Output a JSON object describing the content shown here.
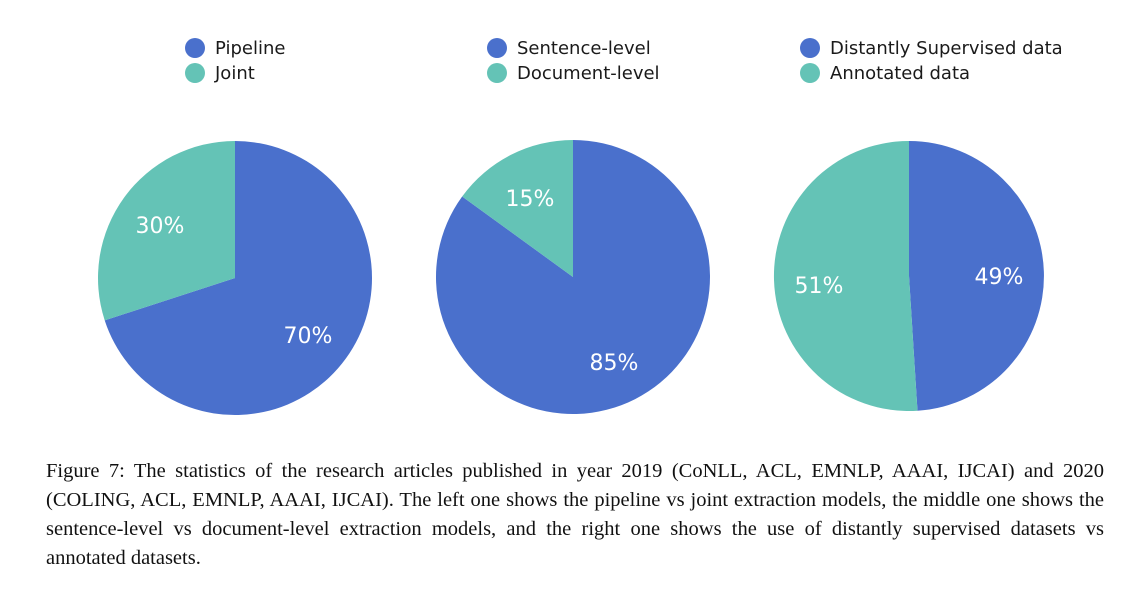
{
  "chart_data": [
    {
      "type": "pie",
      "title": "",
      "labels": [
        "Pipeline",
        "Joint"
      ],
      "values": [
        70,
        30
      ],
      "value_labels": [
        "70%",
        "30%"
      ],
      "colors": [
        "#4a70cc",
        "#64c3b6"
      ],
      "legend_placement": "top"
    },
    {
      "type": "pie",
      "title": "",
      "labels": [
        "Sentence-level",
        "Document-level"
      ],
      "values": [
        85,
        15
      ],
      "value_labels": [
        "85%",
        "15%"
      ],
      "colors": [
        "#4a70cc",
        "#64c3b6"
      ],
      "legend_placement": "top"
    },
    {
      "type": "pie",
      "title": "",
      "labels": [
        "Distantly Supervised data",
        "Annotated data"
      ],
      "values": [
        49,
        51
      ],
      "value_labels": [
        "49%",
        "51%"
      ],
      "colors": [
        "#4a70cc",
        "#64c3b6"
      ],
      "legend_placement": "top"
    }
  ],
  "caption": "Figure 7: The statistics of the research articles published in year 2019 (CoNLL, ACL, EMNLP, AAAI, IJCAI) and 2020 (COLING, ACL, EMNLP, AAAI, IJCAI). The left one shows the pipeline vs joint extraction models, the middle one shows the sentence-level vs document-level extraction models, and the right one shows the use of distantly supervised datasets vs annotated datasets."
}
